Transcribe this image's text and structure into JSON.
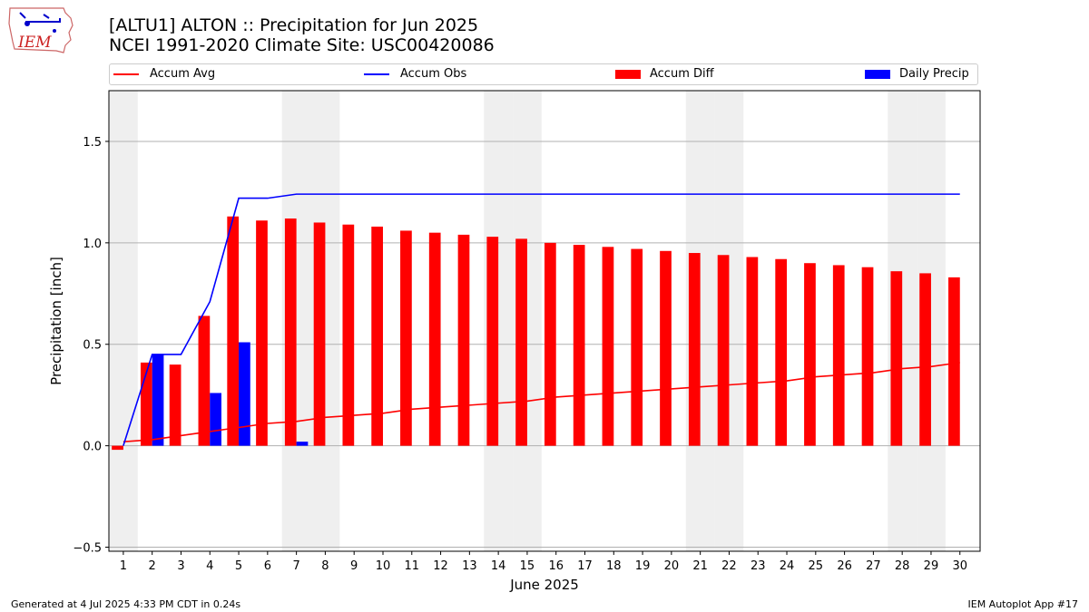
{
  "header": {
    "title_line1": "[ALTU1] ALTON :: Precipitation for Jun 2025",
    "title_line2": "NCEI 1991-2020 Climate Site: USC00420086",
    "logo_text": "IEM"
  },
  "legend": {
    "items": [
      {
        "label": "Accum Avg",
        "color": "#ff0000",
        "kind": "line"
      },
      {
        "label": "Accum Obs",
        "color": "#0000ff",
        "kind": "line"
      },
      {
        "label": "Accum Diff",
        "color": "#ff0000",
        "kind": "box"
      },
      {
        "label": "Daily Precip",
        "color": "#0000ff",
        "kind": "box"
      }
    ]
  },
  "footer": {
    "left": "Generated at 4 Jul 2025 4:33 PM CDT in 0.24s",
    "right": "IEM Autoplot App #17"
  },
  "chart_data": {
    "type": "bar",
    "xlabel": "June 2025",
    "ylabel": "Precipitation [inch]",
    "ylim": [
      -0.52,
      1.75
    ],
    "yticks": [
      -0.5,
      0.0,
      0.5,
      1.0,
      1.5
    ],
    "ytick_labels": [
      "−0.5",
      "0.0",
      "0.5",
      "1.0",
      "1.5"
    ],
    "grid": "horizontal",
    "days": [
      1,
      2,
      3,
      4,
      5,
      6,
      7,
      8,
      9,
      10,
      11,
      12,
      13,
      14,
      15,
      16,
      17,
      18,
      19,
      20,
      21,
      22,
      23,
      24,
      25,
      26,
      27,
      28,
      29,
      30
    ],
    "weekend_days": [
      1,
      7,
      8,
      14,
      15,
      21,
      22,
      28,
      29
    ],
    "series": [
      {
        "name": "Accum Avg",
        "type": "line",
        "color": "#ff0000",
        "values": [
          0.02,
          0.03,
          0.05,
          0.07,
          0.09,
          0.11,
          0.12,
          0.14,
          0.15,
          0.16,
          0.18,
          0.19,
          0.2,
          0.21,
          0.22,
          0.24,
          0.25,
          0.26,
          0.27,
          0.28,
          0.29,
          0.3,
          0.31,
          0.32,
          0.34,
          0.35,
          0.36,
          0.38,
          0.39,
          0.41
        ]
      },
      {
        "name": "Accum Obs",
        "type": "line",
        "color": "#0000ff",
        "values": [
          0.0,
          0.45,
          0.45,
          0.71,
          1.22,
          1.22,
          1.24,
          1.24,
          1.24,
          1.24,
          1.24,
          1.24,
          1.24,
          1.24,
          1.24,
          1.24,
          1.24,
          1.24,
          1.24,
          1.24,
          1.24,
          1.24,
          1.24,
          1.24,
          1.24,
          1.24,
          1.24,
          1.24,
          1.24,
          1.24
        ]
      },
      {
        "name": "Accum Diff",
        "type": "bar",
        "color": "#ff0000",
        "values": [
          -0.02,
          0.41,
          0.4,
          0.64,
          1.13,
          1.11,
          1.12,
          1.1,
          1.09,
          1.08,
          1.06,
          1.05,
          1.04,
          1.03,
          1.02,
          1.0,
          0.99,
          0.98,
          0.97,
          0.96,
          0.95,
          0.94,
          0.93,
          0.92,
          0.9,
          0.89,
          0.88,
          0.86,
          0.85,
          0.83
        ]
      },
      {
        "name": "Daily Precip",
        "type": "bar",
        "color": "#0000ff",
        "values": [
          0.0,
          0.45,
          0.0,
          0.26,
          0.51,
          0.0,
          0.02,
          0.0,
          0.0,
          0.0,
          0.0,
          0.0,
          0.0,
          0.0,
          0.0,
          0.0,
          0.0,
          0.0,
          0.0,
          0.0,
          0.0,
          0.0,
          0.0,
          0.0,
          0.0,
          0.0,
          0.0,
          0.0,
          0.0,
          0.0
        ]
      }
    ]
  }
}
